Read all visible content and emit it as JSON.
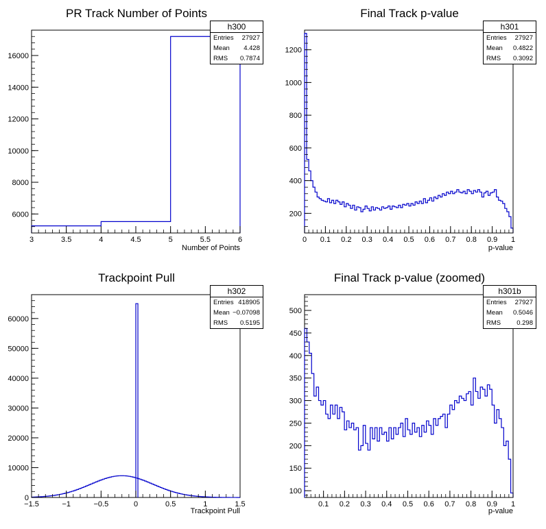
{
  "chart_data": [
    {
      "type": "histogram",
      "title": "PR Track Number of Points",
      "xlabel": "Number of Points",
      "ylabel": "",
      "xlim": [
        3,
        6
      ],
      "ylim": [
        4800,
        17600
      ],
      "xticks": [
        "3",
        "3.5",
        "4",
        "4.5",
        "5",
        "5.5",
        "6"
      ],
      "yticks": [
        "6000",
        "8000",
        "10000",
        "12000",
        "14000",
        "16000"
      ],
      "bins": [
        [
          3,
          4,
          5250
        ],
        [
          4,
          5,
          5520
        ],
        [
          5,
          6,
          17200
        ]
      ],
      "stats": {
        "name": "h300",
        "entries": "27927",
        "mean": "4.428",
        "rms": "0.7874"
      },
      "line_color": "#0000cc"
    },
    {
      "type": "histogram",
      "title": "Final Track p-value",
      "xlabel": "p-value",
      "ylabel": "",
      "xlim": [
        0,
        1
      ],
      "ylim": [
        80,
        1320
      ],
      "xticks": [
        "0",
        "0.1",
        "0.2",
        "0.3",
        "0.4",
        "0.5",
        "0.6",
        "0.7",
        "0.8",
        "0.9",
        "1"
      ],
      "yticks": [
        "200",
        "400",
        "600",
        "800",
        "1000",
        "1200"
      ],
      "values": [
        1300,
        530,
        460,
        400,
        360,
        330,
        300,
        290,
        280,
        275,
        270,
        290,
        265,
        280,
        260,
        280,
        270,
        255,
        270,
        240,
        260,
        250,
        230,
        250,
        220,
        240,
        235,
        210,
        225,
        245,
        230,
        215,
        240,
        220,
        235,
        230,
        220,
        240,
        230,
        235,
        245,
        225,
        245,
        240,
        235,
        250,
        235,
        255,
        250,
        260,
        245,
        260,
        250,
        270,
        260,
        275,
        260,
        290,
        265,
        280,
        295,
        275,
        300,
        290,
        310,
        300,
        320,
        310,
        330,
        320,
        335,
        320,
        330,
        345,
        330,
        325,
        335,
        320,
        345,
        335,
        320,
        340,
        330,
        345,
        330,
        300,
        325,
        335,
        310,
        325,
        330,
        345,
        300,
        280,
        275,
        260,
        230,
        210,
        180,
        110
      ],
      "stats": {
        "name": "h301",
        "entries": "27927",
        "mean": "0.4822",
        "rms": "0.3092"
      },
      "line_color": "#0000cc"
    },
    {
      "type": "histogram",
      "title": "Trackpoint Pull",
      "xlabel": "Trackpoint Pull",
      "ylabel": "",
      "xlim": [
        -1.5,
        1.5
      ],
      "ylim": [
        0,
        68000
      ],
      "xticks": [
        "−1.5",
        "−1",
        "−0.5",
        "0",
        "0.5",
        "1",
        "1.5"
      ],
      "yticks": [
        "0",
        "10000",
        "20000",
        "30000",
        "40000",
        "50000",
        "60000"
      ],
      "mu": -0.2,
      "sigma": 0.45,
      "peak": 7300,
      "nbins": 120,
      "spike": {
        "x0": 0.0,
        "x1": 0.03,
        "value": 65000
      },
      "stats": {
        "name": "h302",
        "entries": "418905",
        "mean": "−0.07098",
        "rms": "0.5195"
      },
      "line_color": "#0000cc"
    },
    {
      "type": "histogram",
      "title": "Final Track p-value (zoomed)",
      "xlabel": "p-value",
      "ylabel": "",
      "xlim": [
        0.01,
        1
      ],
      "ylim": [
        85,
        535
      ],
      "xticks": [
        "0.1",
        "0.2",
        "0.3",
        "0.4",
        "0.5",
        "0.6",
        "0.7",
        "0.8",
        "0.9",
        "1"
      ],
      "yticks": [
        "100",
        "150",
        "200",
        "250",
        "300",
        "350",
        "400",
        "450",
        "500"
      ],
      "values": [
        460,
        430,
        405,
        360,
        310,
        330,
        300,
        290,
        300,
        270,
        260,
        290,
        270,
        290,
        260,
        285,
        275,
        235,
        255,
        240,
        250,
        235,
        240,
        190,
        200,
        245,
        205,
        190,
        240,
        215,
        240,
        210,
        240,
        225,
        230,
        210,
        240,
        215,
        240,
        225,
        240,
        250,
        220,
        260,
        235,
        225,
        250,
        230,
        240,
        220,
        245,
        230,
        255,
        245,
        225,
        260,
        245,
        260,
        265,
        270,
        240,
        270,
        290,
        280,
        300,
        295,
        310,
        305,
        300,
        315,
        320,
        290,
        350,
        320,
        305,
        330,
        325,
        310,
        335,
        325,
        290,
        250,
        280,
        260,
        240,
        200,
        210,
        170,
        95
      ],
      "stats": {
        "name": "h301b",
        "entries": "27927",
        "mean": "0.5046",
        "rms": "0.298"
      },
      "line_color": "#0000cc"
    }
  ],
  "stat_labels": {
    "entries": "Entries",
    "mean": "Mean",
    "rms": "RMS"
  }
}
